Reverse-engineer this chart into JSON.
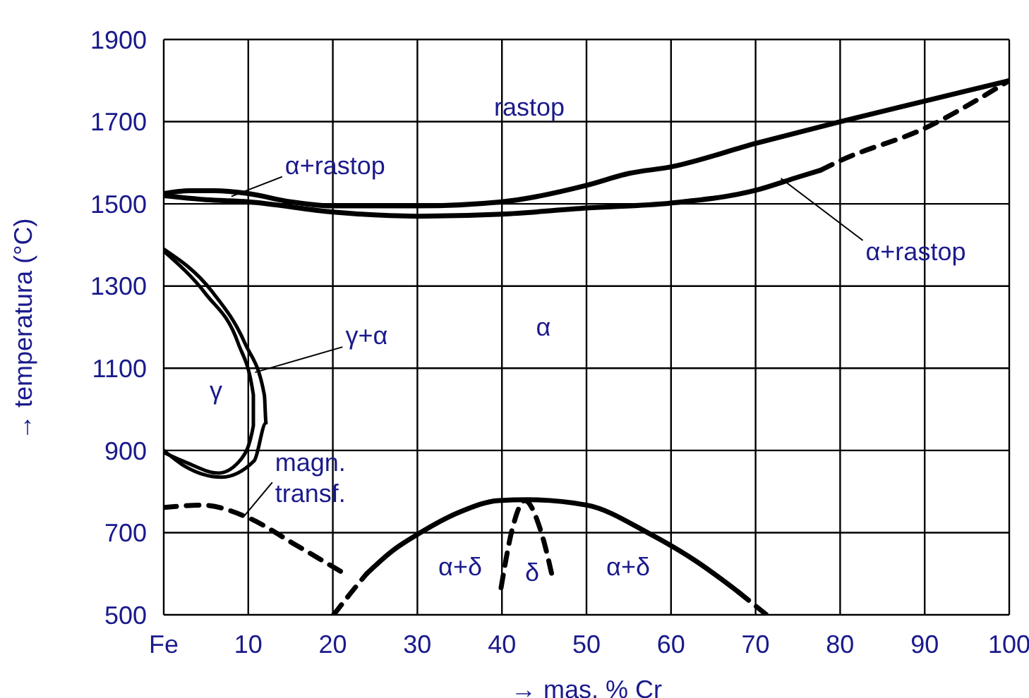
{
  "chart_data": {
    "type": "line",
    "xlabel": "→ mas. % Cr",
    "ylabel": "→ temperatura (°C)",
    "xlim": [
      0,
      100
    ],
    "xticks": [
      {
        "value": 0,
        "label": "Fe"
      },
      10,
      20,
      30,
      40,
      50,
      60,
      70,
      80,
      90,
      100
    ],
    "ylim": [
      500,
      1900
    ],
    "yticks": [
      500,
      700,
      900,
      1100,
      1300,
      1500,
      1700,
      1900
    ],
    "grid": true,
    "marker": "none",
    "series": [
      {
        "color": "#000000",
        "line_style": "solid",
        "x": [
          0,
          3,
          6,
          10,
          15,
          20,
          30,
          40,
          50,
          55,
          60,
          70,
          80,
          90,
          100
        ],
        "values": [
          1525,
          1532,
          1532,
          1525,
          1505,
          1495,
          1495,
          1505,
          1545,
          1574,
          1590,
          1647,
          1700,
          1750,
          1800
        ]
      },
      {
        "color": "#000000",
        "line_style": "solid",
        "x": [
          0,
          5,
          10,
          20,
          30,
          40,
          50,
          60,
          70,
          75,
          77.7
        ],
        "values": [
          1520,
          1510,
          1505,
          1480,
          1470,
          1475,
          1490,
          1502,
          1533,
          1565,
          1582
        ]
      },
      {
        "color": "#000000",
        "line_style": "dashed",
        "x": [
          77.7,
          80,
          90,
          100
        ],
        "values": [
          1582,
          1605,
          1684,
          1800
        ]
      },
      {
        "color": "#000000",
        "line_style": "solid",
        "x": [
          0,
          5.7,
          9.6,
          11.9,
          12.1,
          10.7,
          6.8,
          2.3,
          0
        ],
        "values": [
          1390,
          1287,
          1161,
          1035,
          967,
          875,
          835,
          864,
          900
        ]
      },
      {
        "color": "#000000",
        "line_style": "solid",
        "x": [
          0,
          5,
          8.8,
          10.6,
          10.6,
          9.2,
          6.5,
          2.5,
          0
        ],
        "values": [
          1385,
          1280,
          1161,
          1035,
          960,
          880,
          845,
          872,
          895
        ]
      },
      {
        "color": "#000000",
        "line_style": "dashed",
        "x": [
          0,
          4.5,
          9.8,
          15.7,
          21.3
        ],
        "values": [
          761,
          767,
          738,
          669,
          601
        ]
      },
      {
        "color": "#000000",
        "line_style": "dashed",
        "x": [
          20.1,
          22,
          24
        ],
        "values": [
          500,
          550,
          600
        ]
      },
      {
        "color": "#000000",
        "line_style": "solid",
        "x": [
          24,
          27,
          30.2,
          35,
          39.6,
          43,
          50,
          57.4,
          63,
          68
        ],
        "values": [
          600,
          655,
          698,
          750,
          778,
          780,
          767,
          698,
          630,
          555
        ]
      },
      {
        "color": "#000000",
        "line_style": "dashed",
        "x": [
          68,
          71.3
        ],
        "values": [
          555,
          500
        ]
      },
      {
        "color": "#000000",
        "line_style": "dashed",
        "x": [
          39.9,
          41.3,
          42.7,
          44.6,
          46
        ],
        "values": [
          566,
          715,
          778,
          704,
          589
        ]
      }
    ],
    "annotations": [
      "rastop",
      {
        "text": "α+rastop",
        "x": 8,
        "y": 1518
      },
      {
        "text": "α+rastop",
        "x": 73,
        "y": 1562
      },
      {
        "text": "γ+α",
        "x": 10.8,
        "y": 1090
      },
      "α",
      "γ",
      {
        "text": "magn. transf.",
        "x": 9.5,
        "y": 740
      },
      "α+δ",
      "δ",
      "α+δ"
    ]
  }
}
